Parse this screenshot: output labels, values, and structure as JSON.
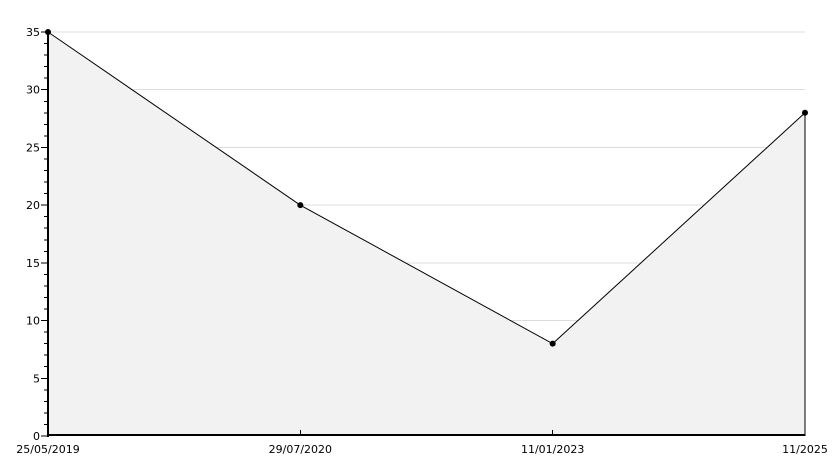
{
  "chart_data": {
    "type": "area",
    "title": "",
    "xlabel": "",
    "ylabel": "",
    "categories": [
      "25/05/2019",
      "29/07/2020",
      "11/01/2023",
      "11/2025"
    ],
    "values": [
      35,
      20,
      8,
      28
    ],
    "ylim": [
      0,
      35
    ],
    "y_major_tick_step": 5,
    "y_minor_tick_step": 1,
    "y_tick_labels": [
      "0",
      "5",
      "10",
      "15",
      "20",
      "25",
      "30",
      "35"
    ],
    "grid": "horizontal-major",
    "legend_position": "none",
    "marker": "circle",
    "colors": {
      "background": "#ffffff",
      "line": "#000000",
      "marker": "#000000",
      "area_fill": "#f2f2f2",
      "gridline": "#dcdcdc",
      "axis": "#000000",
      "text": "#000000"
    }
  }
}
